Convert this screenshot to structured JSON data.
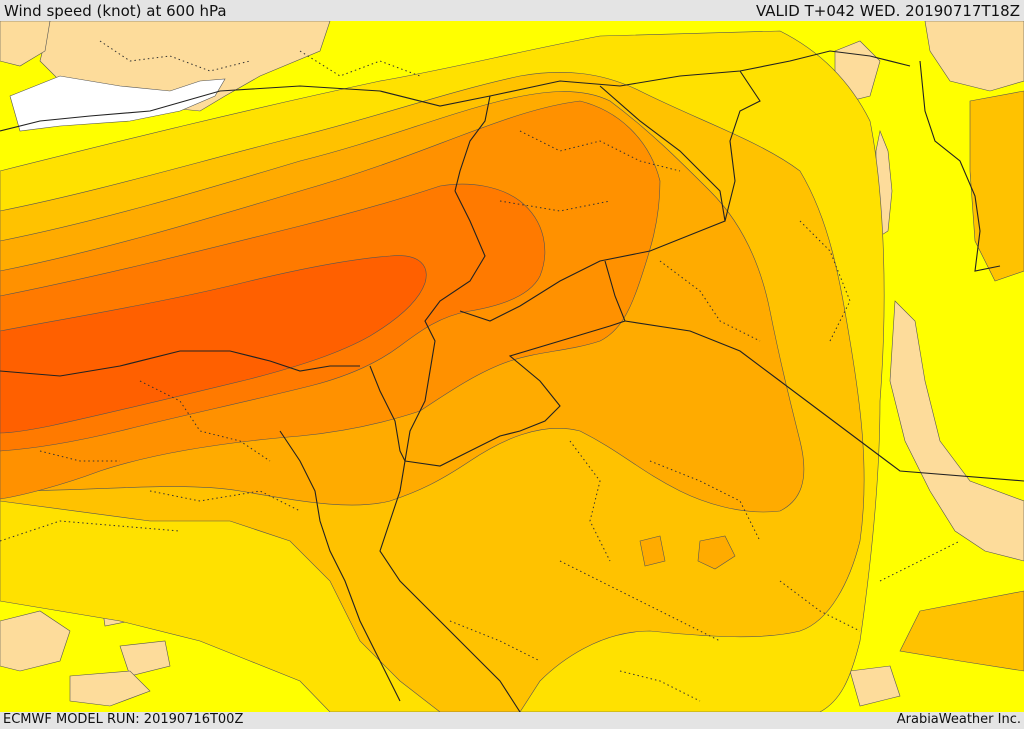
{
  "header": {
    "title": "Wind speed (knot) at 600 hPa",
    "valid": "VALID T+042 WED. 20190717T18Z"
  },
  "footer": {
    "run": "ECMWF MODEL RUN: 20190716T00Z",
    "credit": "ArabiaWeather Inc."
  },
  "colors": {
    "sea_land_bg": "#ffff00",
    "light_tan": "#fddc9b",
    "band_yellow_orange": "#ffe100",
    "band_amber": "#ffc200",
    "band_orange_light": "#ffab00",
    "band_orange": "#ff9100",
    "band_dark_orange": "#ff7a00",
    "band_red_orange": "#ff6000",
    "calm_white": "#ffffff",
    "border": "#222222"
  }
}
